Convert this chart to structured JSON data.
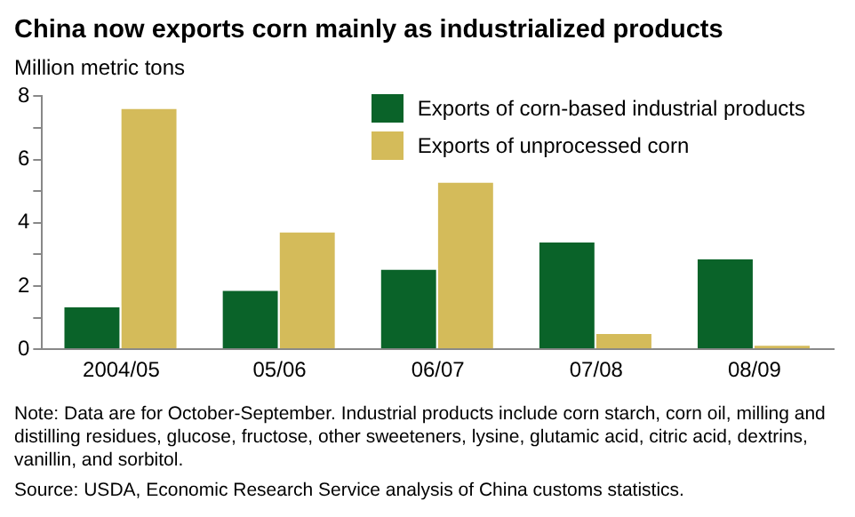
{
  "chart_data": {
    "type": "bar",
    "title": "China now exports corn mainly as industrialized products",
    "ylabel": "Million metric tons",
    "categories": [
      "2004/05",
      "05/06",
      "06/07",
      "07/08",
      "08/09"
    ],
    "series": [
      {
        "name": "Exports of corn-based industrial products",
        "color": "#0a6329",
        "values": [
          1.38,
          1.9,
          2.57,
          3.43,
          2.9
        ]
      },
      {
        "name": "Exports of unprocessed corn",
        "color": "#d4bb5a",
        "values": [
          7.65,
          3.75,
          5.32,
          0.54,
          0.17
        ]
      }
    ],
    "ylim": [
      0,
      8
    ],
    "yticks": [
      0,
      {
        "value": 1,
        "label": null
      },
      2,
      {
        "value": 3,
        "label": null
      },
      4,
      {
        "value": 5,
        "label": null
      },
      6,
      {
        "value": 7,
        "label": null
      },
      8
    ],
    "grid": false,
    "legend": "top right",
    "annotations": [
      "Note: Data are for October-September. Industrial products include corn starch, corn oil, milling and distilling residues, glucose, fructose, other sweeteners, lysine, glutamic acid, citric acid, dextrins, vanillin, and sorbitol.",
      "Source: USDA, Economic Research Service analysis of China customs statistics."
    ]
  }
}
